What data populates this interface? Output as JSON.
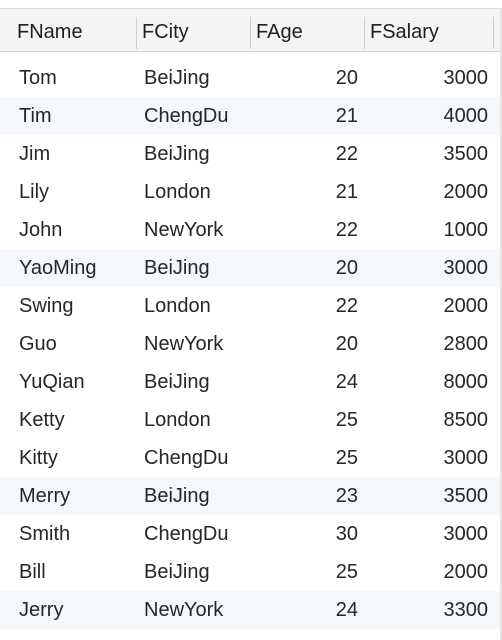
{
  "table": {
    "columns": [
      "FName",
      "FCity",
      "FAge",
      "FSalary"
    ],
    "rows": [
      {
        "name": "Tom",
        "city": "BeiJing",
        "age": "20",
        "salary": "3000"
      },
      {
        "name": "Tim",
        "city": "ChengDu",
        "age": "21",
        "salary": "4000"
      },
      {
        "name": "Jim",
        "city": "BeiJing",
        "age": "22",
        "salary": "3500"
      },
      {
        "name": "Lily",
        "city": "London",
        "age": "21",
        "salary": "2000"
      },
      {
        "name": "John",
        "city": "NewYork",
        "age": "22",
        "salary": "1000"
      },
      {
        "name": "YaoMing",
        "city": "BeiJing",
        "age": "20",
        "salary": "3000"
      },
      {
        "name": "Swing",
        "city": "London",
        "age": "22",
        "salary": "2000"
      },
      {
        "name": "Guo",
        "city": "NewYork",
        "age": "20",
        "salary": "2800"
      },
      {
        "name": "YuQian",
        "city": "BeiJing",
        "age": "24",
        "salary": "8000"
      },
      {
        "name": "Ketty",
        "city": "London",
        "age": "25",
        "salary": "8500"
      },
      {
        "name": "Kitty",
        "city": "ChengDu",
        "age": "25",
        "salary": "3000"
      },
      {
        "name": "Merry",
        "city": "BeiJing",
        "age": "23",
        "salary": "3500"
      },
      {
        "name": "Smith",
        "city": "ChengDu",
        "age": "30",
        "salary": "3000"
      },
      {
        "name": "Bill",
        "city": "BeiJing",
        "age": "25",
        "salary": "2000"
      },
      {
        "name": "Jerry",
        "city": "NewYork",
        "age": "24",
        "salary": "3300"
      }
    ],
    "shaded_rows": [
      1,
      5,
      11,
      14
    ]
  }
}
